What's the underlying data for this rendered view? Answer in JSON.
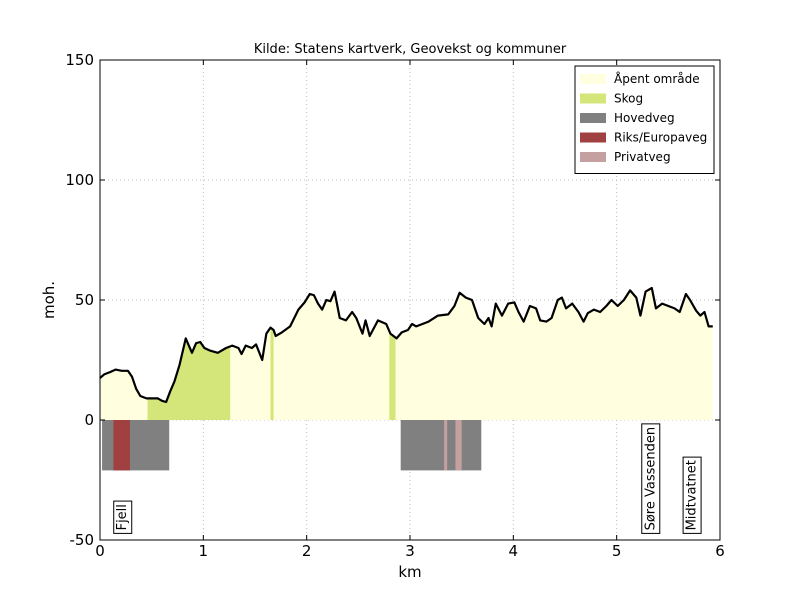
{
  "chart_data": {
    "type": "area",
    "title": "Kilde: Statens kartverk, Geovekst og kommuner",
    "xlabel": "km",
    "ylabel": "moh.",
    "xlim": [
      0,
      6
    ],
    "ylim": [
      -50,
      150
    ],
    "xticks": [
      0,
      1,
      2,
      3,
      4,
      5,
      6
    ],
    "yticks": [
      -50,
      0,
      50,
      100,
      150
    ],
    "grid": true,
    "legend": "upper right",
    "line_color": "#000000",
    "x": [
      0,
      0.04,
      0.1,
      0.15,
      0.21,
      0.27,
      0.31,
      0.35,
      0.39,
      0.45,
      0.5,
      0.56,
      0.6,
      0.64,
      0.68,
      0.72,
      0.77,
      0.83,
      0.89,
      0.93,
      0.97,
      1.01,
      1.06,
      1.14,
      1.22,
      1.28,
      1.34,
      1.37,
      1.41,
      1.47,
      1.51,
      1.57,
      1.61,
      1.65,
      1.68,
      1.7,
      1.76,
      1.84,
      1.92,
      1.98,
      2.03,
      2.07,
      2.11,
      2.15,
      2.19,
      2.23,
      2.27,
      2.32,
      2.38,
      2.44,
      2.48,
      2.54,
      2.57,
      2.61,
      2.69,
      2.77,
      2.81,
      2.87,
      2.92,
      2.98,
      3.02,
      3.06,
      3.18,
      3.27,
      3.37,
      3.43,
      3.48,
      3.54,
      3.6,
      3.66,
      3.72,
      3.76,
      3.79,
      3.83,
      3.89,
      3.95,
      4.01,
      4.05,
      4.1,
      4.16,
      4.22,
      4.26,
      4.32,
      4.37,
      4.43,
      4.47,
      4.51,
      4.57,
      4.63,
      4.68,
      4.72,
      4.78,
      4.84,
      4.9,
      4.95,
      5.01,
      5.07,
      5.13,
      5.19,
      5.23,
      5.28,
      5.34,
      5.38,
      5.44,
      5.5,
      5.56,
      5.61,
      5.67,
      5.71,
      5.77,
      5.81,
      5.85,
      5.89,
      5.93
    ],
    "series": [
      {
        "name": "Åpent område",
        "color": "#ffffe0",
        "values": [
          17.5,
          19,
          20,
          21,
          20.5,
          20.5,
          18,
          13,
          10,
          9,
          9,
          9,
          8,
          7.5,
          12,
          16,
          23,
          34,
          28,
          32,
          32.5,
          30,
          29,
          28,
          30,
          31,
          30,
          27.5,
          31,
          30,
          31.5,
          25,
          36,
          38.5,
          37.5,
          35,
          36.5,
          39,
          46,
          49,
          52.5,
          52,
          48.5,
          46,
          50,
          49.5,
          53.5,
          42.5,
          41.5,
          45,
          42.5,
          36,
          41.5,
          35,
          41.5,
          40,
          36,
          34,
          36.5,
          37.5,
          40,
          39,
          41,
          43.5,
          44,
          47.5,
          53,
          51,
          50,
          42.5,
          40,
          42.5,
          39,
          48.5,
          43.5,
          48.5,
          49,
          45,
          41,
          47.5,
          46.5,
          41.5,
          41,
          42.5,
          50,
          51,
          46.5,
          48.5,
          45,
          41,
          44.5,
          46,
          45,
          47.5,
          50,
          47.5,
          50,
          54,
          51,
          43.5,
          53.5,
          55,
          46.5,
          48.5,
          47.5,
          46.5,
          45,
          52.5,
          50,
          45.5,
          43.5,
          45,
          39,
          39
        ]
      }
    ],
    "covers": [
      {
        "name": "Skog",
        "color": "#d4e57a",
        "ranges": [
          [
            0.46,
            1.26
          ],
          [
            1.65,
            1.68
          ],
          [
            2.8,
            2.86
          ]
        ]
      }
    ],
    "roads": [
      {
        "name": "Hovedveg",
        "color": "#808080",
        "ranges": [
          [
            0.02,
            0.67
          ],
          [
            2.91,
            3.69
          ]
        ]
      },
      {
        "name": "Riks/Europaveg",
        "color": "#a04040",
        "ranges": [
          [
            0.13,
            0.29
          ]
        ]
      },
      {
        "name": "Privatveg",
        "color": "#c4a0a0",
        "ranges": [
          [
            3.33,
            3.36
          ],
          [
            3.44,
            3.5
          ]
        ]
      }
    ],
    "road_band": [
      -21,
      0
    ],
    "places": [
      {
        "label": "Fjell",
        "x": 0.22
      },
      {
        "label": "Søre Vassenden",
        "x": 5.33
      },
      {
        "label": "Midtvatnet",
        "x": 5.73
      }
    ],
    "place_base": -46
  }
}
